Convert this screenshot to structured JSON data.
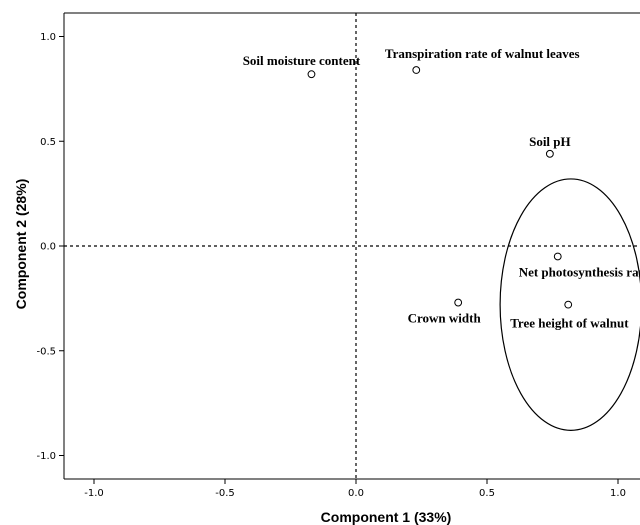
{
  "chart_data": {
    "type": "scatter",
    "title": "",
    "xlabel": "Component 1 (33%)",
    "ylabel": "Component 2 (28%)",
    "xlim": [
      -1.1,
      1.05
    ],
    "ylim": [
      -1.1,
      1.1
    ],
    "x_ticks": [
      -1.0,
      -0.5,
      0.0,
      0.5,
      1.0
    ],
    "y_ticks": [
      1.0,
      0.5,
      0.0,
      -0.5,
      -1.0
    ],
    "x_tick_labels": [
      "-1.0",
      "-0.5",
      "0.0",
      "0.5",
      "1.0"
    ],
    "y_tick_labels": [
      "1.0",
      "0.5",
      "0.0",
      "-0.5",
      "-1.0"
    ],
    "reference_lines": {
      "x": 0.0,
      "y": 0.0,
      "style": "dotted"
    },
    "points": [
      {
        "label": "Soil moisture content",
        "x": -0.17,
        "y": 0.82
      },
      {
        "label": "Transpiration rate of walnut leaves",
        "x": 0.23,
        "y": 0.84
      },
      {
        "label": "Soil pH",
        "x": 0.74,
        "y": 0.44
      },
      {
        "label": "Net photosynthesis rate of walnut leaves",
        "x": 0.77,
        "y": -0.05
      },
      {
        "label": "Crown width",
        "x": 0.39,
        "y": -0.27
      },
      {
        "label": "Tree height of walnut",
        "x": 0.81,
        "y": -0.28
      }
    ],
    "ellipse": {
      "cx": 0.82,
      "cy": -0.28,
      "rx": 0.27,
      "ry": 0.6
    },
    "grid": false,
    "legend": "none"
  }
}
